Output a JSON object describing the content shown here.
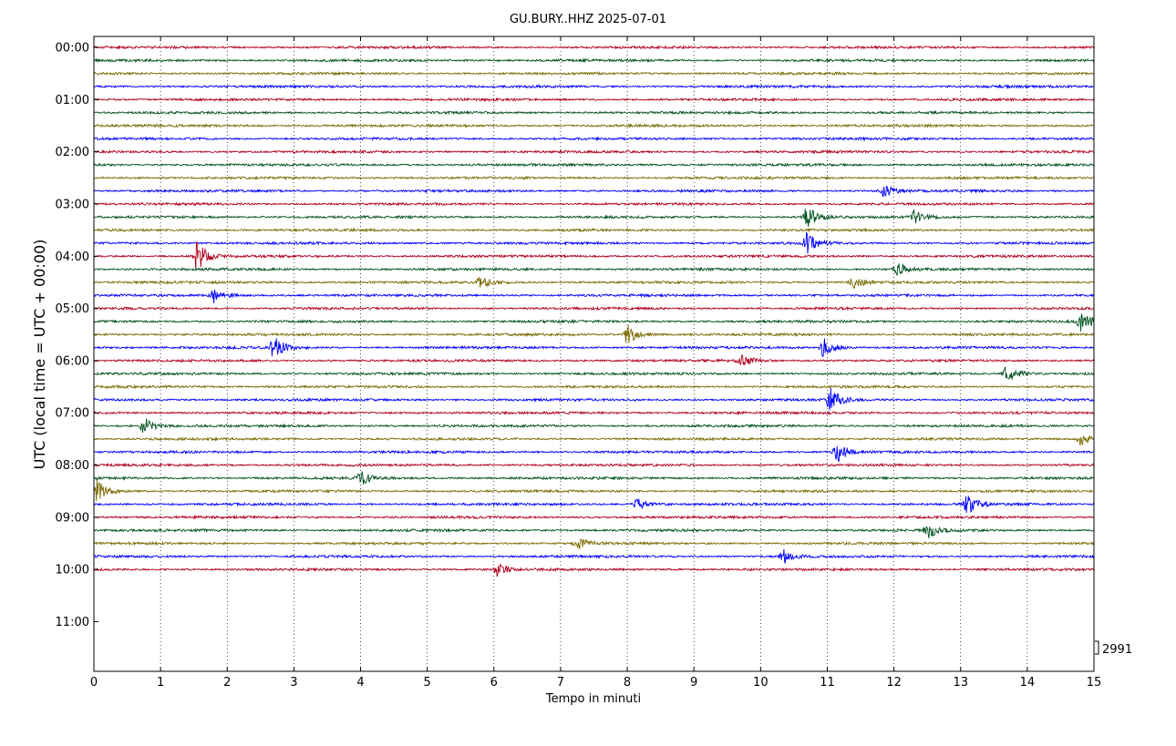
{
  "chart_data": {
    "type": "line",
    "title": "GU.BURY..HHZ 2025-07-01",
    "xlabel": "Tempo in minuti",
    "ylabel": "UTC (local time = UTC + 00:00)",
    "xlim": [
      0,
      15
    ],
    "x_ticks": [
      "0",
      "1",
      "2",
      "3",
      "4",
      "5",
      "6",
      "7",
      "8",
      "9",
      "10",
      "11",
      "12",
      "13",
      "14",
      "15"
    ],
    "y_ticks": [
      "00:00",
      "01:00",
      "02:00",
      "03:00",
      "04:00",
      "05:00",
      "06:00",
      "07:00",
      "08:00",
      "09:00",
      "10:00",
      "11:00"
    ],
    "rows_per_hour": 4,
    "trace_colors": [
      "#b00020",
      "#00501e",
      "#7a6a00",
      "#0000ff"
    ],
    "scale_label": "2991",
    "grid": "vertical dotted at each minute",
    "traces": [
      {
        "line": "00:00",
        "events": []
      },
      {
        "line": "00:15",
        "events": []
      },
      {
        "line": "00:30",
        "events": []
      },
      {
        "line": "00:45",
        "events": []
      },
      {
        "line": "01:00",
        "events": []
      },
      {
        "line": "01:15",
        "events": []
      },
      {
        "line": "01:30",
        "events": []
      },
      {
        "line": "01:45",
        "events": []
      },
      {
        "line": "02:00",
        "events": []
      },
      {
        "line": "02:15",
        "events": []
      },
      {
        "line": "02:30",
        "events": []
      },
      {
        "line": "02:45",
        "events": [
          {
            "t": 11.85,
            "amp": 0.5
          }
        ]
      },
      {
        "line": "03:00",
        "events": []
      },
      {
        "line": "03:15",
        "events": [
          {
            "t": 10.7,
            "amp": 0.9
          },
          {
            "t": 12.3,
            "amp": 0.6
          }
        ]
      },
      {
        "line": "03:30",
        "events": []
      },
      {
        "line": "03:45",
        "events": [
          {
            "t": 10.7,
            "amp": 0.8
          }
        ]
      },
      {
        "line": "04:00",
        "events": [
          {
            "t": 1.55,
            "amp": 1.2
          }
        ]
      },
      {
        "line": "04:15",
        "events": [
          {
            "t": 12.05,
            "amp": 0.6
          }
        ]
      },
      {
        "line": "04:30",
        "events": [
          {
            "t": 5.8,
            "amp": 0.5
          },
          {
            "t": 11.4,
            "amp": 0.6
          }
        ]
      },
      {
        "line": "04:45",
        "events": [
          {
            "t": 1.8,
            "amp": 0.6
          }
        ]
      },
      {
        "line": "05:00",
        "events": []
      },
      {
        "line": "05:15",
        "events": [
          {
            "t": 14.8,
            "amp": 0.9
          }
        ]
      },
      {
        "line": "05:30",
        "events": [
          {
            "t": 8.0,
            "amp": 0.8
          }
        ]
      },
      {
        "line": "05:45",
        "events": [
          {
            "t": 2.7,
            "amp": 1.0
          },
          {
            "t": 10.95,
            "amp": 0.9
          }
        ]
      },
      {
        "line": "06:00",
        "events": [
          {
            "t": 9.7,
            "amp": 0.6
          }
        ]
      },
      {
        "line": "06:15",
        "events": [
          {
            "t": 13.7,
            "amp": 0.8
          }
        ]
      },
      {
        "line": "06:30",
        "events": []
      },
      {
        "line": "06:45",
        "events": [
          {
            "t": 11.05,
            "amp": 1.0
          }
        ]
      },
      {
        "line": "07:00",
        "events": []
      },
      {
        "line": "07:15",
        "events": [
          {
            "t": 0.75,
            "amp": 0.7
          }
        ]
      },
      {
        "line": "07:30",
        "events": [
          {
            "t": 14.8,
            "amp": 0.6
          }
        ]
      },
      {
        "line": "07:45",
        "events": [
          {
            "t": 11.15,
            "amp": 0.8
          }
        ]
      },
      {
        "line": "08:00",
        "events": []
      },
      {
        "line": "08:15",
        "events": [
          {
            "t": 4.0,
            "amp": 0.6
          }
        ]
      },
      {
        "line": "08:30",
        "events": [
          {
            "t": 0.05,
            "amp": 0.9
          }
        ]
      },
      {
        "line": "08:45",
        "events": [
          {
            "t": 8.15,
            "amp": 0.5
          },
          {
            "t": 13.1,
            "amp": 0.8
          }
        ]
      },
      {
        "line": "09:00",
        "events": []
      },
      {
        "line": "09:15",
        "events": [
          {
            "t": 12.5,
            "amp": 0.7
          }
        ]
      },
      {
        "line": "09:30",
        "events": [
          {
            "t": 7.25,
            "amp": 0.6
          }
        ]
      },
      {
        "line": "09:45",
        "events": [
          {
            "t": 10.35,
            "amp": 0.5
          }
        ]
      },
      {
        "line": "10:00",
        "events": [
          {
            "t": 6.05,
            "amp": 0.5
          }
        ]
      }
    ]
  }
}
